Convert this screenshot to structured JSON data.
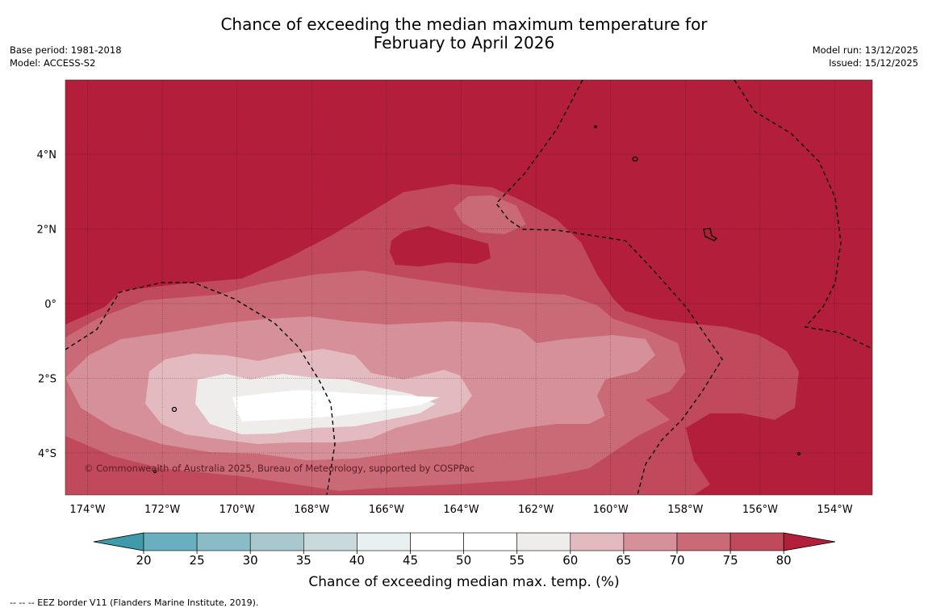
{
  "header": {
    "title_line1": "Chance of exceeding the median maximum temperature for",
    "title_line2": "February to April 2026",
    "base_period": "Base period: 1981-2018",
    "model": "Model: ACCESS-S2",
    "model_run": "Model run: 13/12/2025",
    "issued": "Issued: 15/12/2025"
  },
  "map": {
    "longitude_ticks": [
      "174°W",
      "172°W",
      "170°W",
      "168°W",
      "166°W",
      "164°W",
      "162°W",
      "160°W",
      "158°W",
      "156°W",
      "154°W"
    ],
    "latitude_ticks": [
      "4°N",
      "2°N",
      "0°",
      "2°S",
      "4°S"
    ],
    "copyright": "© Commonwealth of Australia 2025, Bureau of Meteorology, supported by COSPPac"
  },
  "colorbar": {
    "ticks": [
      "20",
      "25",
      "30",
      "35",
      "40",
      "45",
      "50",
      "55",
      "60",
      "65",
      "70",
      "75",
      "80"
    ],
    "label": "Chance of exceeding median max. temp. (%)",
    "colors": {
      "below_20": "#3f9aaa",
      "20_25": "#6aafbf",
      "25_30": "#8abcc7",
      "30_35": "#a9c8cd",
      "35_40": "#c9d9dc",
      "40_45": "#e8f0f1",
      "45_50": "#ffffff",
      "50_55": "#ffffff",
      "55_60": "#eeedec",
      "60_65": "#e2bac0",
      "65_70": "#d69099",
      "70_75": "#ca6a77",
      "75_80": "#c04a5b",
      "above_80": "#b31e3a"
    }
  },
  "footer": {
    "legend": "--  --  -- EEZ border V11 (Flanders Marine Institute, 2019)."
  }
}
